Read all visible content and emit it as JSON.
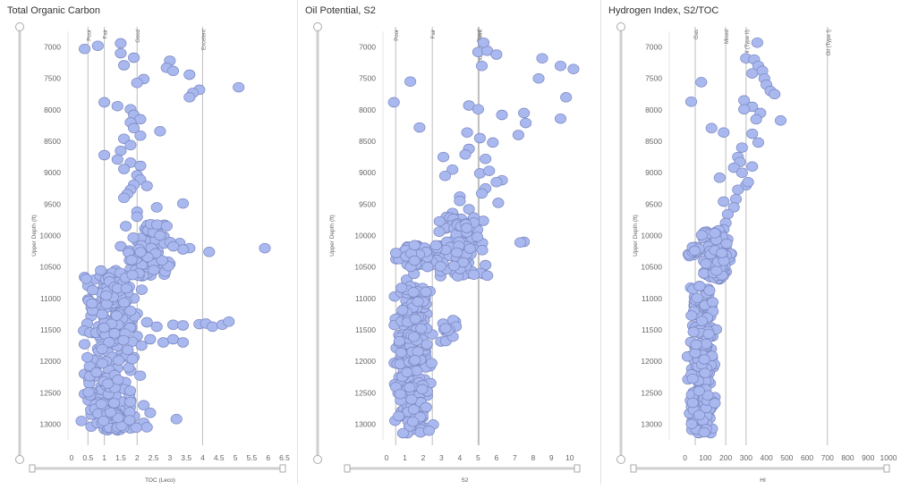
{
  "colors": {
    "point_fill": "#a9b8ef",
    "point_stroke": "#7b87c0",
    "ref_line": "#bdbdbd",
    "axis": "#999999",
    "slider": "#cfcfcf"
  },
  "chart_data": [
    {
      "type": "scatter",
      "title": "Total Organic Carbon",
      "xlabel": "TOC (Leco)",
      "ylabel": "Upper Depth (ft)",
      "xlim": [
        0,
        6.5
      ],
      "xticks": [
        "0",
        "0.5",
        "1",
        "1.5",
        "2",
        "2.5",
        "3",
        "3.5",
        "4",
        "4.5",
        "5",
        "5.5",
        "6",
        "6.5"
      ],
      "ylim": [
        6750,
        13250
      ],
      "y_inverted": true,
      "yticks": [
        "7000",
        "7500",
        "8000",
        "8500",
        "9000",
        "9500",
        "10000",
        "10500",
        "11000",
        "11500",
        "12000",
        "12500",
        "13000"
      ],
      "reference_lines": [
        {
          "x": 0.5,
          "label": "Poor"
        },
        {
          "x": 1,
          "label": "Fair"
        },
        {
          "x": 2,
          "label": "Good"
        },
        {
          "x": 4,
          "label": "Excelent"
        }
      ],
      "points": [
        [
          0.4,
          7030
        ],
        [
          0.8,
          6980
        ],
        [
          1.5,
          6940
        ],
        [
          1.5,
          7100
        ],
        [
          1.9,
          7170
        ],
        [
          3.0,
          7220
        ],
        [
          2.9,
          7330
        ],
        [
          3.1,
          7380
        ],
        [
          3.6,
          7440
        ],
        [
          1.6,
          7290
        ],
        [
          2.2,
          7510
        ],
        [
          2.0,
          7570
        ],
        [
          3.9,
          7680
        ],
        [
          3.7,
          7730
        ],
        [
          3.6,
          7800
        ],
        [
          5.1,
          7640
        ],
        [
          1.0,
          7880
        ],
        [
          1.4,
          7940
        ],
        [
          1.8,
          7990
        ],
        [
          1.9,
          8080
        ],
        [
          2.1,
          8150
        ],
        [
          1.8,
          8200
        ],
        [
          2.7,
          8340
        ],
        [
          1.9,
          8290
        ],
        [
          1.6,
          8460
        ],
        [
          2.1,
          8410
        ],
        [
          1.8,
          8560
        ],
        [
          1.5,
          8650
        ],
        [
          1.0,
          8720
        ],
        [
          1.4,
          8790
        ],
        [
          1.8,
          8840
        ],
        [
          2.1,
          8890
        ],
        [
          1.6,
          8940
        ],
        [
          2.0,
          9040
        ],
        [
          2.1,
          9110
        ],
        [
          1.9,
          9190
        ],
        [
          1.8,
          9270
        ],
        [
          1.7,
          9340
        ],
        [
          1.6,
          9400
        ],
        [
          2.3,
          9210
        ],
        [
          2.6,
          9550
        ],
        [
          3.4,
          9490
        ],
        [
          2.0,
          9620
        ],
        [
          2.0,
          9700
        ],
        [
          2.6,
          9880
        ],
        [
          1.5,
          10170
        ],
        [
          3.3,
          10120
        ],
        [
          3.6,
          10200
        ],
        [
          3.4,
          10220
        ],
        [
          4.2,
          10260
        ],
        [
          5.9,
          10200
        ],
        [
          2.6,
          10420
        ],
        [
          3.0,
          10450
        ],
        [
          2.0,
          10560
        ],
        [
          1.8,
          10620
        ],
        [
          0.4,
          10660
        ],
        [
          0.7,
          10700
        ],
        [
          0.5,
          10800
        ],
        [
          1.0,
          10770
        ],
        [
          1.2,
          10600
        ],
        [
          1.6,
          10730
        ],
        [
          0.9,
          10880
        ],
        [
          1.4,
          10950
        ],
        [
          1.9,
          11000
        ],
        [
          1.0,
          11050
        ],
        [
          0.7,
          11080
        ],
        [
          1.5,
          11150
        ],
        [
          1.8,
          11200
        ],
        [
          2.0,
          11240
        ],
        [
          1.6,
          11270
        ],
        [
          1.0,
          11310
        ],
        [
          1.3,
          11350
        ],
        [
          2.3,
          11380
        ],
        [
          2.6,
          11450
        ],
        [
          3.1,
          11420
        ],
        [
          3.4,
          11430
        ],
        [
          3.9,
          11410
        ],
        [
          4.1,
          11400
        ],
        [
          4.3,
          11450
        ],
        [
          4.6,
          11420
        ],
        [
          4.8,
          11370
        ],
        [
          0.8,
          11520
        ],
        [
          1.2,
          11560
        ],
        [
          1.6,
          11580
        ],
        [
          2.0,
          11600
        ],
        [
          2.4,
          11650
        ],
        [
          2.8,
          11700
        ],
        [
          3.1,
          11650
        ],
        [
          3.4,
          11700
        ],
        [
          1.4,
          11750
        ],
        [
          0.8,
          11800
        ],
        [
          1.1,
          11850
        ],
        [
          1.5,
          11900
        ],
        [
          1.8,
          11960
        ],
        [
          0.9,
          12000
        ],
        [
          0.6,
          12050
        ],
        [
          1.2,
          12100
        ],
        [
          1.8,
          12150
        ],
        [
          0.4,
          12200
        ],
        [
          0.7,
          12250
        ],
        [
          1.1,
          12300
        ],
        [
          1.5,
          12320
        ],
        [
          0.9,
          12400
        ],
        [
          1.3,
          12450
        ],
        [
          0.4,
          12520
        ],
        [
          0.8,
          12560
        ],
        [
          1.2,
          12600
        ],
        [
          1.8,
          12620
        ],
        [
          2.2,
          12700
        ],
        [
          0.9,
          12720
        ],
        [
          1.5,
          12780
        ],
        [
          2.4,
          12820
        ],
        [
          0.6,
          12850
        ],
        [
          1.0,
          12900
        ],
        [
          1.4,
          12930
        ],
        [
          1.8,
          12960
        ],
        [
          2.2,
          12980
        ],
        [
          0.3,
          12950
        ],
        [
          3.2,
          12920
        ],
        [
          0.6,
          13040
        ],
        [
          1.0,
          13080
        ],
        [
          1.4,
          13100
        ],
        [
          1.8,
          13070
        ],
        [
          2.3,
          13050
        ]
      ],
      "clusters": [
        {
          "x": [
            1.6,
            3.2
          ],
          "y": [
            9800,
            10650
          ],
          "n": 90,
          "seed": 11
        },
        {
          "x": [
            0.3,
            2.2
          ],
          "y": [
            10550,
            13100
          ],
          "n": 230,
          "seed": 12
        }
      ]
    },
    {
      "type": "scatter",
      "title": "Oil Potential, S2",
      "xlabel": "S2",
      "ylabel": "Upper Depth (ft)",
      "xlim": [
        0,
        10.5
      ],
      "xticks": [
        "0",
        "1",
        "2",
        "3",
        "4",
        "5",
        "6",
        "7",
        "8",
        "9",
        "10"
      ],
      "ylim": [
        6750,
        13250
      ],
      "y_inverted": true,
      "yticks": [
        "7000",
        "7500",
        "8000",
        "8500",
        "9000",
        "9500",
        "10000",
        "10500",
        "11000",
        "11500",
        "12000",
        "12500",
        "13000"
      ],
      "reference_lines": [
        {
          "x": 0.5,
          "label": "Poor"
        },
        {
          "x": 2.5,
          "label": "Fair"
        },
        {
          "x": 5,
          "label": "Good"
        },
        {
          "x": 5.05,
          "label": "Good - Excellent"
        }
      ],
      "points": [
        [
          5.0,
          7080
        ],
        [
          5.5,
          7060
        ],
        [
          5.3,
          6930
        ],
        [
          6.0,
          7120
        ],
        [
          5.2,
          7300
        ],
        [
          8.5,
          7180
        ],
        [
          9.5,
          7300
        ],
        [
          10.2,
          7350
        ],
        [
          8.3,
          7500
        ],
        [
          1.3,
          7550
        ],
        [
          9.8,
          7800
        ],
        [
          0.4,
          7880
        ],
        [
          1.8,
          8280
        ],
        [
          4.5,
          7930
        ],
        [
          5.0,
          7990
        ],
        [
          6.3,
          8080
        ],
        [
          7.5,
          8050
        ],
        [
          7.6,
          8210
        ],
        [
          9.5,
          8140
        ],
        [
          4.4,
          8360
        ],
        [
          5.1,
          8450
        ],
        [
          5.8,
          8520
        ],
        [
          7.2,
          8400
        ],
        [
          4.5,
          8620
        ],
        [
          3.1,
          8750
        ],
        [
          4.3,
          8710
        ],
        [
          5.4,
          8780
        ],
        [
          3.6,
          8950
        ],
        [
          5.1,
          9010
        ],
        [
          3.2,
          9050
        ],
        [
          5.6,
          8970
        ],
        [
          6.3,
          9120
        ],
        [
          6.0,
          9150
        ],
        [
          5.4,
          9250
        ],
        [
          4.0,
          9380
        ],
        [
          5.2,
          9330
        ],
        [
          4.0,
          9450
        ],
        [
          6.1,
          9480
        ],
        [
          4.5,
          9580
        ],
        [
          3.6,
          9640
        ],
        [
          7.5,
          10100
        ],
        [
          5.4,
          10470
        ],
        [
          7.3,
          10110
        ],
        [
          1.1,
          10700
        ],
        [
          1.5,
          10610
        ]
      ],
      "clusters": [
        {
          "x": [
            2.6,
            5.6
          ],
          "y": [
            9700,
            10650
          ],
          "n": 120,
          "seed": 21
        },
        {
          "x": [
            0.4,
            3.2
          ],
          "y": [
            10150,
            10500
          ],
          "n": 50,
          "seed": 22
        },
        {
          "x": [
            0.3,
            2.6
          ],
          "y": [
            10800,
            13150
          ],
          "n": 230,
          "seed": 23
        },
        {
          "x": [
            2.6,
            4.0
          ],
          "y": [
            11300,
            11700
          ],
          "n": 14,
          "seed": 24
        }
      ]
    },
    {
      "type": "scatter",
      "title": "Hydrogen Index, S2/TOC",
      "xlabel": "HI",
      "ylabel": "Upper Depth (ft)",
      "xlim": [
        -60,
        1000
      ],
      "xticks": [
        "0",
        "100",
        "200",
        "300",
        "400",
        "500",
        "600",
        "700",
        "800",
        "900",
        "1000"
      ],
      "ylim": [
        6750,
        13250
      ],
      "y_inverted": true,
      "yticks": [
        "7000",
        "7500",
        "8000",
        "8500",
        "9000",
        "9500",
        "10000",
        "10500",
        "11000",
        "11500",
        "12000",
        "12500",
        "13000"
      ],
      "reference_lines": [
        {
          "x": 50,
          "label": "Gas"
        },
        {
          "x": 200,
          "label": "Mixed"
        },
        {
          "x": 300,
          "label": "Oil (Type II)"
        },
        {
          "x": 700,
          "label": "Oil (Type I)"
        }
      ],
      "points": [
        [
          355,
          6930
        ],
        [
          300,
          7180
        ],
        [
          340,
          7200
        ],
        [
          360,
          7300
        ],
        [
          380,
          7380
        ],
        [
          330,
          7420
        ],
        [
          390,
          7500
        ],
        [
          400,
          7600
        ],
        [
          420,
          7700
        ],
        [
          440,
          7750
        ],
        [
          80,
          7560
        ],
        [
          30,
          7870
        ],
        [
          290,
          7850
        ],
        [
          330,
          7950
        ],
        [
          290,
          7990
        ],
        [
          370,
          8050
        ],
        [
          470,
          8170
        ],
        [
          350,
          8150
        ],
        [
          130,
          8290
        ],
        [
          190,
          8360
        ],
        [
          330,
          8380
        ],
        [
          360,
          8520
        ],
        [
          280,
          8600
        ],
        [
          260,
          8750
        ],
        [
          270,
          8830
        ],
        [
          240,
          8920
        ],
        [
          330,
          8900
        ],
        [
          280,
          9000
        ],
        [
          300,
          9200
        ],
        [
          310,
          9150
        ],
        [
          170,
          9080
        ],
        [
          260,
          9270
        ],
        [
          250,
          9420
        ],
        [
          190,
          9460
        ],
        [
          240,
          9550
        ],
        [
          210,
          9660
        ],
        [
          200,
          9800
        ],
        [
          190,
          9900
        ]
      ],
      "clusters": [
        {
          "x": [
            80,
            230
          ],
          "y": [
            9900,
            10700
          ],
          "n": 140,
          "seed": 31
        },
        {
          "x": [
            0,
            80
          ],
          "y": [
            10150,
            10350
          ],
          "n": 18,
          "seed": 32
        },
        {
          "x": [
            10,
            160
          ],
          "y": [
            10800,
            13150
          ],
          "n": 230,
          "seed": 33
        }
      ]
    }
  ]
}
